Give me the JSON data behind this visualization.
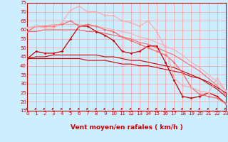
{
  "xlabel": "Vent moyen/en rafales ( km/h )",
  "xlim": [
    0,
    23
  ],
  "ylim": [
    15,
    75
  ],
  "yticks": [
    15,
    20,
    25,
    30,
    35,
    40,
    45,
    50,
    55,
    60,
    65,
    70,
    75
  ],
  "xticks": [
    0,
    1,
    2,
    3,
    4,
    5,
    6,
    7,
    8,
    9,
    10,
    11,
    12,
    13,
    14,
    15,
    16,
    17,
    18,
    19,
    20,
    21,
    22,
    23
  ],
  "bg_color": "#cceeff",
  "grid_color": "#ff9999",
  "lines": [
    {
      "x": [
        0,
        1,
        2,
        3,
        4,
        5,
        6,
        7,
        8,
        9,
        10,
        11,
        12,
        13,
        14,
        15,
        16,
        17,
        18,
        19,
        20,
        21,
        22,
        23
      ],
      "y": [
        44,
        48,
        47,
        47,
        48,
        55,
        62,
        62,
        59,
        57,
        54,
        48,
        47,
        48,
        51,
        51,
        42,
        32,
        23,
        22,
        23,
        25,
        23,
        19
      ],
      "color": "#cc0000",
      "lw": 0.9,
      "marker": "D",
      "ms": 1.8,
      "alpha": 1.0
    },
    {
      "x": [
        0,
        1,
        2,
        3,
        4,
        5,
        6,
        7,
        8,
        9,
        10,
        11,
        12,
        13,
        14,
        15,
        16,
        17,
        18,
        19,
        20,
        21,
        22,
        23
      ],
      "y": [
        59,
        62,
        62,
        62,
        63,
        65,
        62,
        63,
        62,
        60,
        59,
        56,
        54,
        52,
        50,
        48,
        46,
        42,
        36,
        28,
        24,
        23,
        22,
        19
      ],
      "color": "#ff6666",
      "lw": 0.9,
      "marker": "D",
      "ms": 1.8,
      "alpha": 1.0
    },
    {
      "x": [
        0,
        1,
        2,
        3,
        4,
        5,
        6,
        7,
        8,
        9,
        10,
        11,
        12,
        13,
        14,
        15,
        16,
        17,
        18,
        19,
        20,
        21,
        22,
        23
      ],
      "y": [
        61,
        62,
        61,
        61,
        64,
        71,
        73,
        70,
        70,
        68,
        68,
        65,
        64,
        62,
        65,
        59,
        50,
        33,
        29,
        28,
        26,
        25,
        33,
        26
      ],
      "color": "#ffaaaa",
      "lw": 0.9,
      "marker": "D",
      "ms": 1.8,
      "alpha": 1.0
    },
    {
      "x": [
        0,
        1,
        2,
        3,
        4,
        5,
        6,
        7,
        8,
        9,
        10,
        11,
        12,
        13,
        14,
        15,
        16,
        17,
        18,
        19,
        20,
        21,
        22,
        23
      ],
      "y": [
        44,
        44,
        44,
        44,
        44,
        44,
        44,
        43,
        43,
        43,
        42,
        41,
        41,
        40,
        40,
        39,
        38,
        37,
        36,
        34,
        33,
        31,
        28,
        25
      ],
      "color": "#cc0000",
      "lw": 0.8,
      "marker": null,
      "ms": 0,
      "alpha": 1.0
    },
    {
      "x": [
        0,
        1,
        2,
        3,
        4,
        5,
        6,
        7,
        8,
        9,
        10,
        11,
        12,
        13,
        14,
        15,
        16,
        17,
        18,
        19,
        20,
        21,
        22,
        23
      ],
      "y": [
        44,
        45,
        45,
        46,
        46,
        46,
        46,
        46,
        46,
        45,
        45,
        44,
        43,
        43,
        42,
        41,
        40,
        39,
        37,
        35,
        33,
        30,
        27,
        23
      ],
      "color": "#cc0000",
      "lw": 0.8,
      "marker": null,
      "ms": 0,
      "alpha": 1.0
    },
    {
      "x": [
        0,
        1,
        2,
        3,
        4,
        5,
        6,
        7,
        8,
        9,
        10,
        11,
        12,
        13,
        14,
        15,
        16,
        17,
        18,
        19,
        20,
        21,
        22,
        23
      ],
      "y": [
        59,
        59,
        60,
        60,
        60,
        60,
        60,
        59,
        59,
        58,
        57,
        56,
        55,
        53,
        52,
        50,
        48,
        46,
        43,
        40,
        37,
        33,
        29,
        24
      ],
      "color": "#ff6666",
      "lw": 0.8,
      "marker": null,
      "ms": 0,
      "alpha": 1.0
    },
    {
      "x": [
        0,
        1,
        2,
        3,
        4,
        5,
        6,
        7,
        8,
        9,
        10,
        11,
        12,
        13,
        14,
        15,
        16,
        17,
        18,
        19,
        20,
        21,
        22,
        23
      ],
      "y": [
        61,
        62,
        62,
        63,
        63,
        63,
        63,
        62,
        62,
        61,
        60,
        59,
        58,
        56,
        55,
        53,
        51,
        49,
        46,
        42,
        39,
        35,
        31,
        26
      ],
      "color": "#ffaaaa",
      "lw": 0.8,
      "marker": null,
      "ms": 0,
      "alpha": 1.0
    }
  ],
  "arrow_color": "#cc2222",
  "axis_color": "#cc0000",
  "tick_fontsize": 5.0,
  "label_fontsize": 6.5
}
